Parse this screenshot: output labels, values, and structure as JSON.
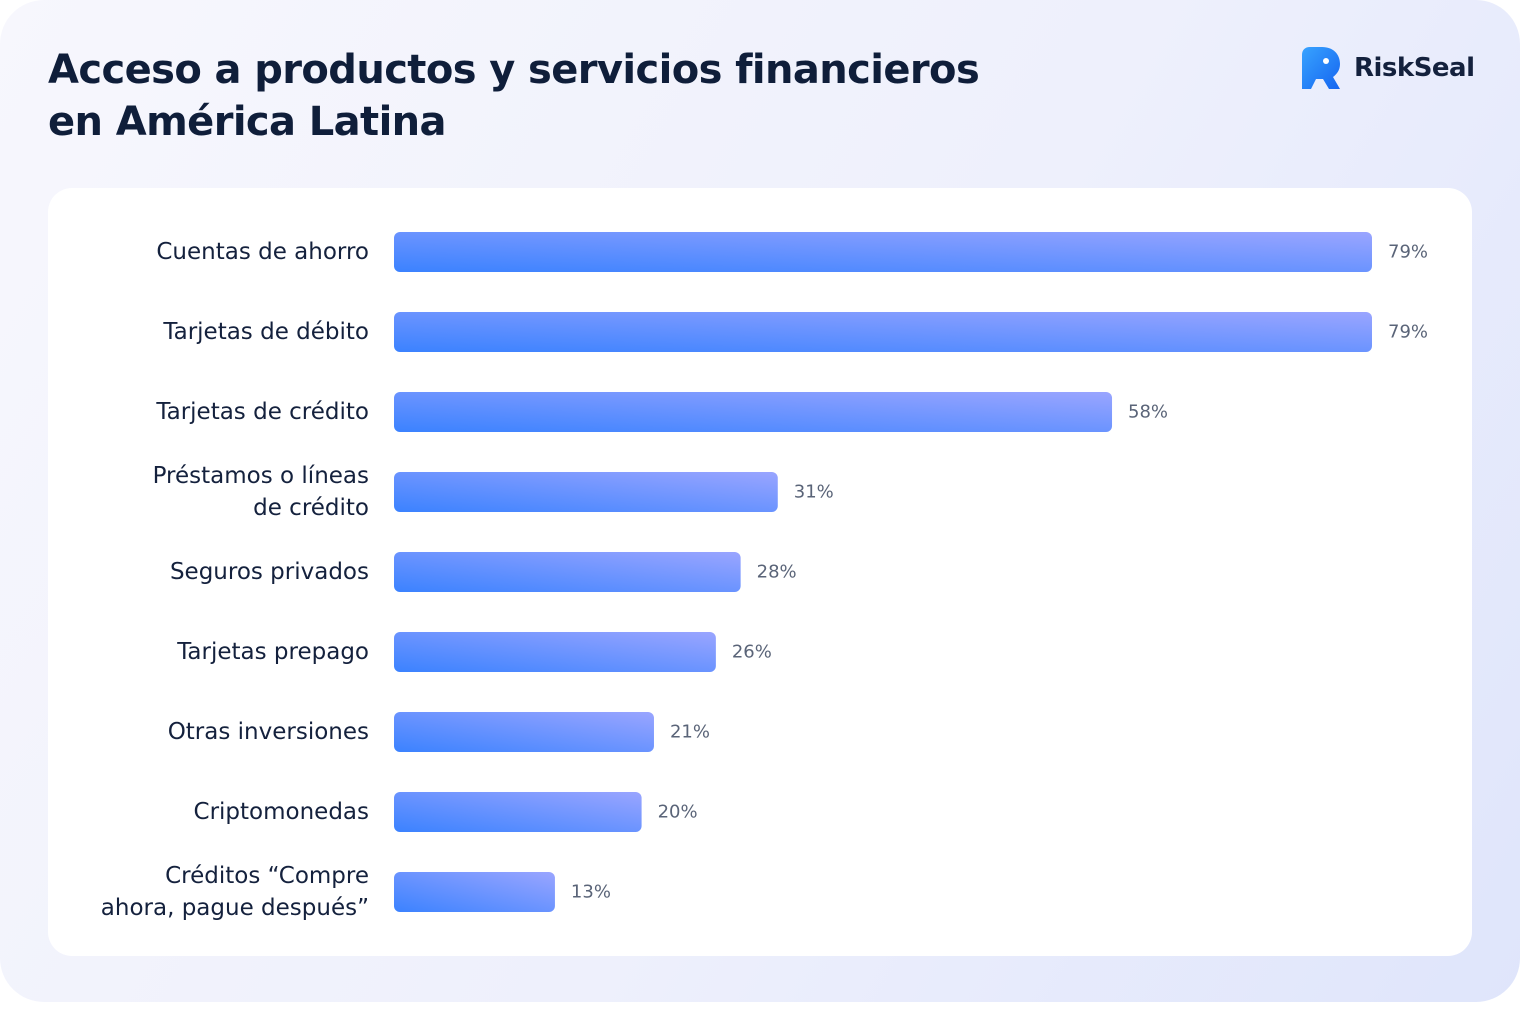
{
  "title_lines": [
    "Acceso a productos y servicios financieros",
    "en América Latina"
  ],
  "brand": {
    "name": "RiskSeal",
    "logo_icon": "riskseal-logo-icon",
    "logo_color": "#1e88ff"
  },
  "colors": {
    "bar_start": "#3b82ff",
    "bar_end": "#9aa5ff",
    "text": "#14213d",
    "value_text": "#5a6478"
  },
  "chart_data": {
    "type": "bar",
    "orientation": "horizontal",
    "title": "Acceso a productos y servicios financieros en América Latina",
    "categories": [
      [
        "Cuentas de ahorro"
      ],
      [
        "Tarjetas de débito"
      ],
      [
        "Tarjetas de crédito"
      ],
      [
        "Préstamos o líneas",
        "de crédito"
      ],
      [
        "Seguros privados"
      ],
      [
        "Tarjetas prepago"
      ],
      [
        "Otras inversiones"
      ],
      [
        "Criptomonedas"
      ],
      [
        "Créditos “Compre",
        "ahora, pague después”"
      ]
    ],
    "values": [
      79,
      79,
      58,
      31,
      28,
      26,
      21,
      20,
      13
    ],
    "value_labels": [
      "79%",
      "79%",
      "58%",
      "31%",
      "28%",
      "26%",
      "21%",
      "20%",
      "13%"
    ],
    "xlim": [
      0,
      79
    ],
    "grid": false,
    "legend": "none"
  }
}
